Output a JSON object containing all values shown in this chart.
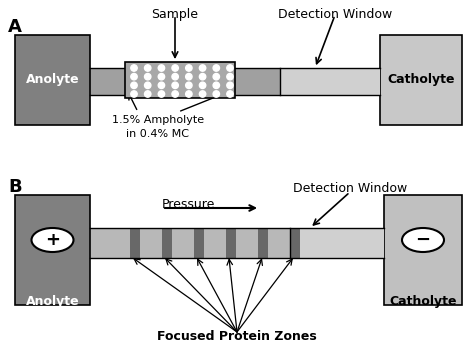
{
  "bg_color": "#ffffff",
  "anolyte_color_A": "#808080",
  "catholyte_color_A": "#c8c8c8",
  "channel_dark": "#a0a0a0",
  "channel_light": "#c8c8c8",
  "detect_win_color": "#d0d0d0",
  "sample_fill": "#a8a8a8",
  "dot_color": "#ffffff",
  "anolyte_color_B": "#808080",
  "catholyte_color_B": "#c0c0c0",
  "channel_B_bg": "#b8b8b8",
  "channel_B_light": "#c8c8c8",
  "stripe_color": "#686868",
  "white": "#ffffff",
  "black": "#000000",
  "label_A": "A",
  "label_B": "B",
  "text_sample": "Sample",
  "text_detection_A": "Detection Window",
  "text_anolyte": "Anolyte",
  "text_catholyte": "Catholyte",
  "text_ampholyte": "1.5% Ampholyte\nin 0.4% MC",
  "text_pressure": "Pressure",
  "text_focused": "Focused Protein Zones",
  "text_detection_B": "Detection Window"
}
